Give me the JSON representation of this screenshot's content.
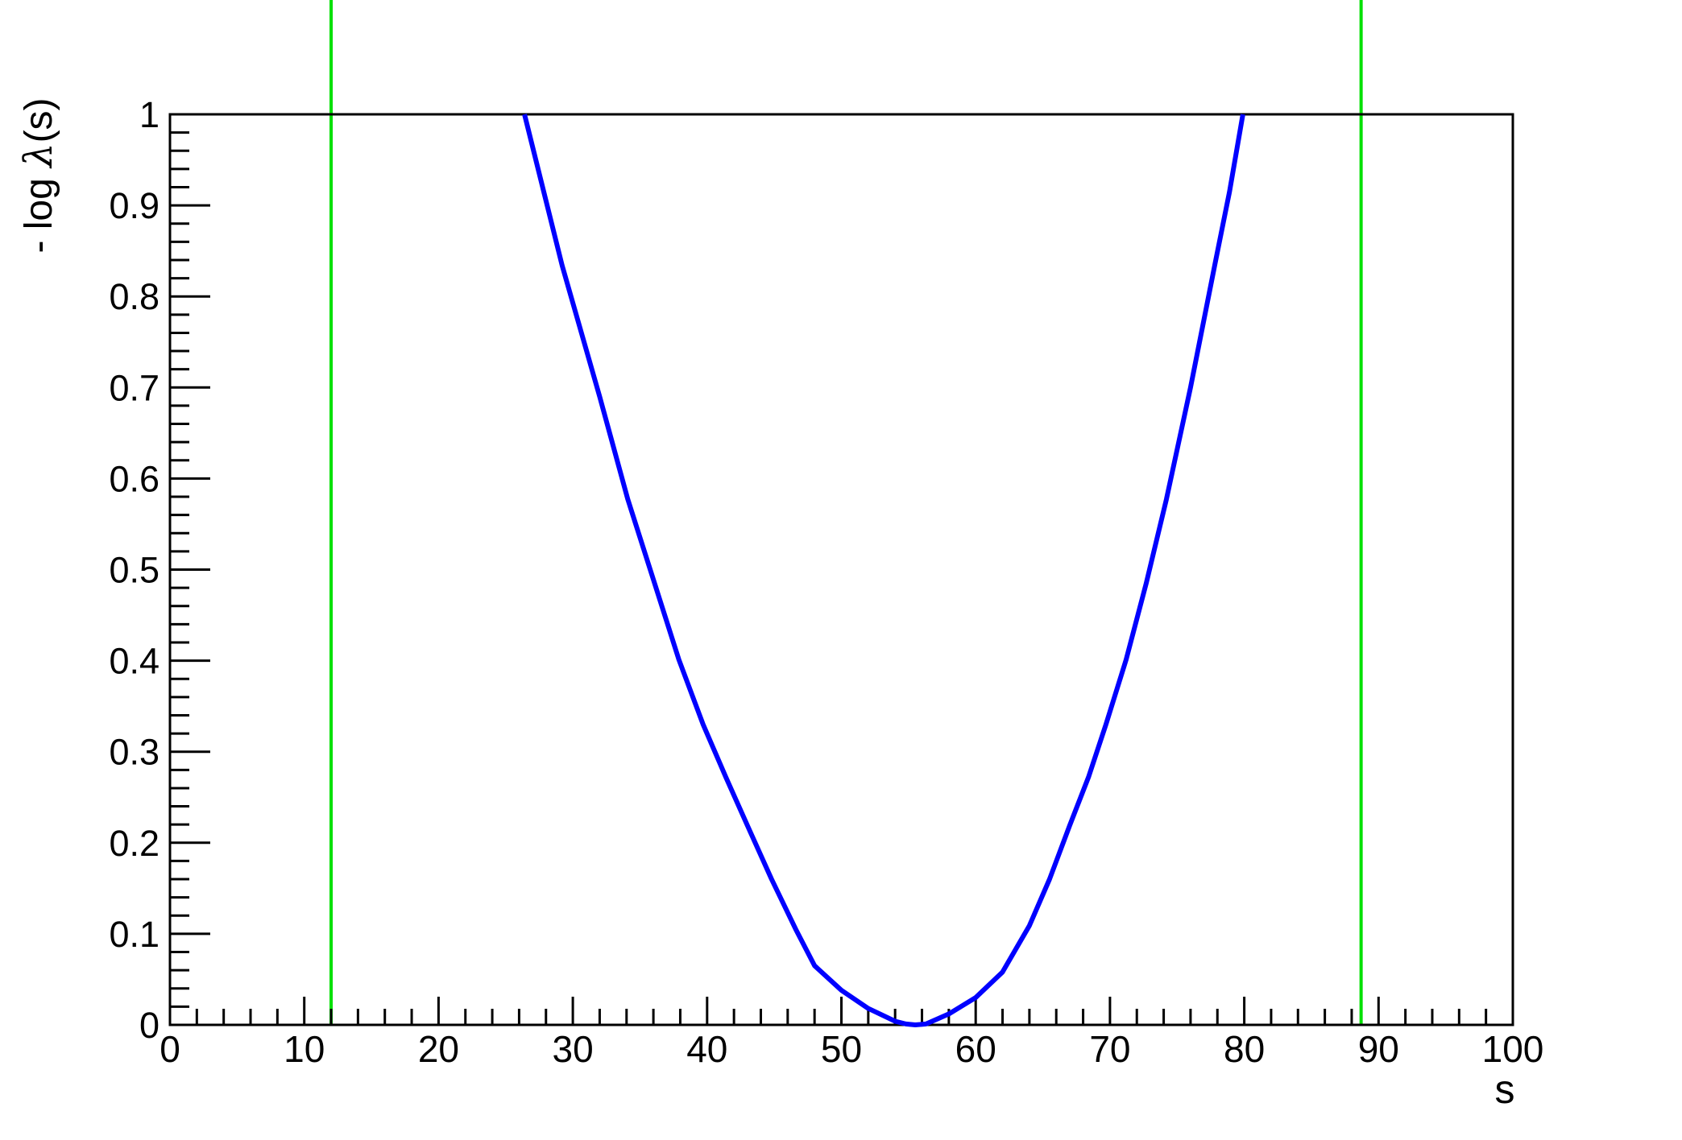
{
  "chart_data": {
    "type": "line",
    "title": "",
    "xlabel": "s",
    "ylabel": "- log λ(s)",
    "ylabel_parts": {
      "prefix": "- log ",
      "lambda": "λ",
      "suffix": "(s)"
    },
    "xlim": [
      0,
      100
    ],
    "ylim": [
      0,
      1
    ],
    "grid": false,
    "legend": null,
    "background_color": "#ffffff",
    "axis_color": "#000000",
    "x_major_tick_step": 10,
    "x_minor_tick_step": 2,
    "y_major_tick_step": 0.1,
    "y_minor_tick_step": 0.02,
    "x_tick_labels": [
      "0",
      "10",
      "20",
      "30",
      "40",
      "50",
      "60",
      "70",
      "80",
      "90",
      "100"
    ],
    "y_tick_labels": [
      "0",
      "0.1",
      "0.2",
      "0.3",
      "0.4",
      "0.5",
      "0.6",
      "0.7",
      "0.8",
      "0.9",
      "1"
    ],
    "series": [
      {
        "name": "negative-log-profile-likelihood",
        "color": "#0000ff",
        "line_width": 6,
        "minimum": {
          "s": 55.5,
          "value": 0.0
        },
        "points": [
          [
            26.4,
            1.0
          ],
          [
            28.0,
            0.905
          ],
          [
            29.2,
            0.834
          ],
          [
            32.0,
            0.69
          ],
          [
            34.1,
            0.577
          ],
          [
            36.0,
            0.489
          ],
          [
            37.9,
            0.401
          ],
          [
            39.7,
            0.33
          ],
          [
            41.4,
            0.272
          ],
          [
            43.0,
            0.219
          ],
          [
            44.8,
            0.16
          ],
          [
            46.6,
            0.105
          ],
          [
            48.0,
            0.065
          ],
          [
            50.0,
            0.038
          ],
          [
            52.0,
            0.018
          ],
          [
            54.0,
            0.004
          ],
          [
            54.8,
            0.001
          ],
          [
            55.5,
            0.0
          ],
          [
            56.3,
            0.001
          ],
          [
            58.0,
            0.012
          ],
          [
            60.0,
            0.03
          ],
          [
            62.0,
            0.058
          ],
          [
            64.0,
            0.109
          ],
          [
            65.5,
            0.16
          ],
          [
            67.0,
            0.219
          ],
          [
            68.4,
            0.272
          ],
          [
            69.7,
            0.33
          ],
          [
            71.2,
            0.401
          ],
          [
            72.7,
            0.485
          ],
          [
            74.2,
            0.577
          ],
          [
            76.0,
            0.7
          ],
          [
            77.8,
            0.834
          ],
          [
            78.9,
            0.915
          ],
          [
            79.9,
            1.0
          ]
        ]
      }
    ],
    "vertical_lines": [
      {
        "name": "interval-bound-left",
        "x": 12.0,
        "color": "#00e000",
        "line_width": 4
      },
      {
        "name": "interval-bound-right",
        "x": 88.7,
        "color": "#00e000",
        "line_width": 4
      }
    ]
  }
}
